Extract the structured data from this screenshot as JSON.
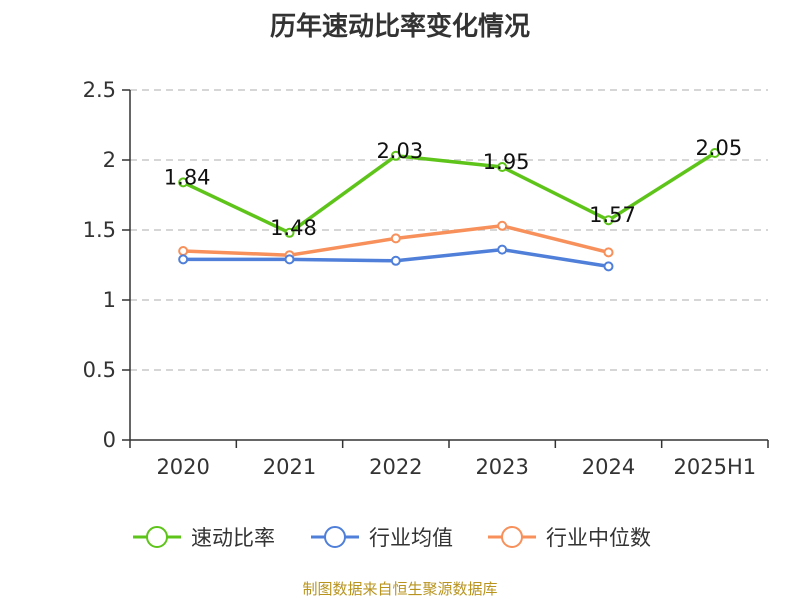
{
  "title": "历年速动比率变化情况",
  "source": "制图数据来自恒生聚源数据库",
  "chart_data": {
    "type": "line",
    "categories": [
      "2020",
      "2021",
      "2022",
      "2023",
      "2024",
      "2025H1"
    ],
    "ylim": [
      0,
      2.5
    ],
    "yticks": [
      "0",
      "0.5",
      "1",
      "1.5",
      "2",
      "2.5"
    ],
    "grid": true,
    "legend_position": "bottom",
    "series": [
      {
        "name": "速动比率",
        "color": "#5ec41a",
        "values": [
          1.84,
          1.48,
          2.03,
          1.95,
          1.57,
          2.05
        ],
        "labels": [
          "1.84",
          "1.48",
          "2.03",
          "1.95",
          "1.57",
          "2.05"
        ]
      },
      {
        "name": "行业均值",
        "color": "#4f7fd9",
        "values": [
          1.29,
          1.29,
          1.28,
          1.36,
          1.24,
          null
        ]
      },
      {
        "name": "行业中位数",
        "color": "#f7905a",
        "values": [
          1.35,
          1.32,
          1.44,
          1.53,
          1.34,
          null
        ]
      }
    ]
  }
}
